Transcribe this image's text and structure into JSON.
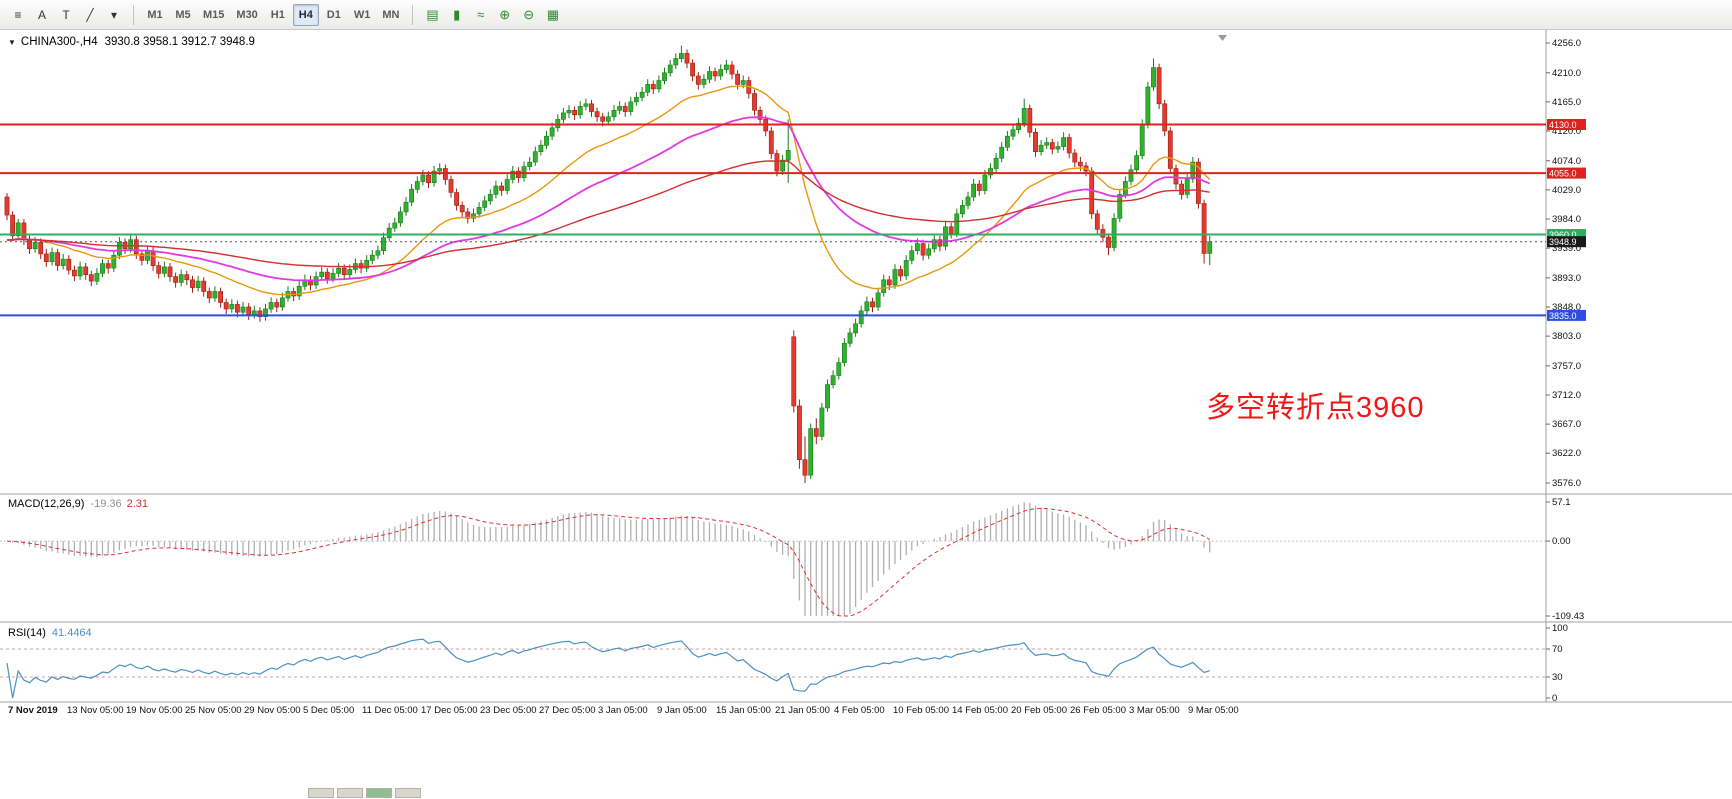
{
  "toolbar": {
    "left_tools": [
      {
        "name": "chart-menu-icon",
        "glyph": "≡"
      },
      {
        "name": "cursor-tool-icon",
        "glyph": "A"
      },
      {
        "name": "text-tool-icon",
        "glyph": "T"
      },
      {
        "name": "trendline-tool-icon",
        "glyph": "╱"
      },
      {
        "name": "drawing-dropdown-icon",
        "glyph": "▾"
      }
    ],
    "timeframes": {
      "items": [
        "M1",
        "M5",
        "M15",
        "M30",
        "H1",
        "H4",
        "D1",
        "W1",
        "MN"
      ],
      "active": "H4"
    },
    "chart_tools": [
      {
        "name": "bar-chart-icon",
        "glyph": "▤"
      },
      {
        "name": "candlestick-chart-icon",
        "glyph": "▮"
      },
      {
        "name": "line-chart-icon",
        "glyph": "≈"
      },
      {
        "name": "zoom-in-icon",
        "glyph": "⊕"
      },
      {
        "name": "zoom-out-icon",
        "glyph": "⊖"
      },
      {
        "name": "grid-icon",
        "glyph": "▦"
      }
    ]
  },
  "chart": {
    "title": {
      "dropdown_glyph": "▼",
      "symbol": "CHINA300-,H4",
      "ohlc": "3930.8 3958.1 3912.7 3948.9"
    },
    "annotation": {
      "text": "多空转折点3960",
      "color": "#f21616"
    }
  },
  "bottom_bar": {
    "tabs": [
      "#d8d5cb",
      "#d8d5cb",
      "#8fbf8f",
      "#d8d5cb"
    ]
  },
  "chart_data": {
    "type": "candlestick",
    "symbol": "CHINA300-",
    "period": "H4",
    "current_bar": {
      "open": 3930.8,
      "high": 3958.1,
      "low": 3912.7,
      "close": 3948.9
    },
    "colors": {
      "up": "#2eb22e",
      "up_border": "#1b7a1b",
      "down": "#e23b2e",
      "down_border": "#9c1f16",
      "background": "#ffffff",
      "axis_text": "#111111",
      "separator": "#a0a0a0"
    },
    "y_axis": {
      "min": 3576.0,
      "max": 4256.0,
      "ticks": [
        4256.0,
        4210.0,
        4165.0,
        4120.0,
        4074.0,
        4029.0,
        3984.0,
        3939.0,
        3893.0,
        3848.0,
        3803.0,
        3757.0,
        3712.0,
        3667.0,
        3622.0,
        3576.0
      ]
    },
    "horizontal_lines": [
      {
        "price": 4130.0,
        "color": "#e01f1f",
        "width": 2
      },
      {
        "price": 4055.0,
        "color": "#e01f1f",
        "width": 2
      },
      {
        "price": 3960.0,
        "color": "#2fae62",
        "width": 2
      },
      {
        "price": 3835.0,
        "color": "#2c4fe0",
        "width": 2
      }
    ],
    "current_price": {
      "value": 3948.9,
      "box_color": "#1a1a1a"
    },
    "moving_averages": [
      {
        "name": "fast-orange",
        "period": 24,
        "color": "#e8980f",
        "width": 1.4
      },
      {
        "name": "mid-magenta",
        "period": 52,
        "color": "#e23ae2",
        "width": 1.8
      },
      {
        "name": "slow-red",
        "period": 110,
        "color": "#d22f2f",
        "width": 1.4
      }
    ],
    "indicators": {
      "macd": {
        "label": "MACD(12,26,9)",
        "fast": 12,
        "slow": 26,
        "signal": 9,
        "value_main": -19.36,
        "value_signal": 2.31,
        "axis_values": [
          57.1,
          0,
          -109.43
        ],
        "axis_labels": [
          "57.1",
          "0.00",
          "-109.43"
        ],
        "histogram_color": "#b0b0b0",
        "signal_color": "#e03030"
      },
      "rsi": {
        "label": "RSI(14)",
        "period": 14,
        "value": 41.4464,
        "levels": [
          70,
          30
        ],
        "axis_values": [
          100,
          70,
          30,
          0
        ],
        "axis_labels": [
          "100",
          "70",
          "30",
          "0"
        ],
        "line_color": "#4a90c4",
        "level_color": "#c9a0a0"
      }
    },
    "x_axis": {
      "labels": [
        "7 Nov 2019",
        "13 Nov 05:00",
        "19 Nov 05:00",
        "25 Nov 05:00",
        "29 Nov 05:00",
        "5 Dec 05:00",
        "11 Dec 05:00",
        "17 Dec 05:00",
        "23 Dec 05:00",
        "27 Dec 05:00",
        "3 Jan 05:00",
        "9 Jan 05:00",
        "15 Jan 05:00",
        "21 Jan 05:00",
        "4 Feb 05:00",
        "10 Feb 05:00",
        "14 Feb 05:00",
        "20 Feb 05:00",
        "26 Feb 05:00",
        "3 Mar 05:00",
        "9 Mar 05:00"
      ]
    },
    "bars": [
      [
        4018,
        4024,
        3982,
        3990
      ],
      [
        3990,
        3996,
        3950,
        3958
      ],
      [
        3958,
        3984,
        3952,
        3978
      ],
      [
        3978,
        3984,
        3944,
        3952
      ],
      [
        3952,
        3958,
        3930,
        3938
      ],
      [
        3938,
        3956,
        3932,
        3948
      ],
      [
        3948,
        3954,
        3922,
        3930
      ],
      [
        3930,
        3938,
        3910,
        3918
      ],
      [
        3918,
        3940,
        3912,
        3932
      ],
      [
        3932,
        3938,
        3904,
        3912
      ],
      [
        3912,
        3930,
        3906,
        3922
      ],
      [
        3922,
        3928,
        3898,
        3905
      ],
      [
        3905,
        3912,
        3888,
        3896
      ],
      [
        3896,
        3918,
        3890,
        3910
      ],
      [
        3910,
        3916,
        3890,
        3898
      ],
      [
        3898,
        3904,
        3880,
        3888
      ],
      [
        3888,
        3908,
        3882,
        3900
      ],
      [
        3900,
        3922,
        3894,
        3915
      ],
      [
        3915,
        3921,
        3900,
        3908
      ],
      [
        3908,
        3935,
        3902,
        3928
      ],
      [
        3928,
        3956,
        3922,
        3948
      ],
      [
        3948,
        3954,
        3930,
        3938
      ],
      [
        3938,
        3960,
        3932,
        3952
      ],
      [
        3952,
        3958,
        3922,
        3930
      ],
      [
        3930,
        3936,
        3912,
        3920
      ],
      [
        3920,
        3942,
        3914,
        3935
      ],
      [
        3935,
        3941,
        3904,
        3912
      ],
      [
        3912,
        3918,
        3892,
        3900
      ],
      [
        3900,
        3918,
        3894,
        3910
      ],
      [
        3910,
        3916,
        3887,
        3895
      ],
      [
        3895,
        3901,
        3878,
        3886
      ],
      [
        3886,
        3906,
        3880,
        3898
      ],
      [
        3898,
        3904,
        3882,
        3890
      ],
      [
        3890,
        3896,
        3870,
        3878
      ],
      [
        3878,
        3896,
        3872,
        3888
      ],
      [
        3888,
        3894,
        3864,
        3872
      ],
      [
        3872,
        3878,
        3854,
        3862
      ],
      [
        3862,
        3880,
        3856,
        3872
      ],
      [
        3872,
        3878,
        3847,
        3855
      ],
      [
        3855,
        3861,
        3837,
        3845
      ],
      [
        3845,
        3860,
        3839,
        3852
      ],
      [
        3852,
        3858,
        3832,
        3840
      ],
      [
        3840,
        3856,
        3834,
        3848
      ],
      [
        3848,
        3854,
        3828,
        3836
      ],
      [
        3836,
        3850,
        3830,
        3842
      ],
      [
        3842,
        3848,
        3825,
        3833
      ],
      [
        3833,
        3853,
        3827,
        3845
      ],
      [
        3845,
        3863,
        3839,
        3855
      ],
      [
        3855,
        3861,
        3840,
        3848
      ],
      [
        3848,
        3870,
        3842,
        3862
      ],
      [
        3862,
        3880,
        3856,
        3872
      ],
      [
        3872,
        3878,
        3857,
        3865
      ],
      [
        3865,
        3888,
        3859,
        3880
      ],
      [
        3880,
        3898,
        3874,
        3890
      ],
      [
        3890,
        3896,
        3874,
        3882
      ],
      [
        3882,
        3903,
        3876,
        3895
      ],
      [
        3895,
        3910,
        3889,
        3902
      ],
      [
        3902,
        3908,
        3884,
        3892
      ],
      [
        3892,
        3908,
        3886,
        3900
      ],
      [
        3900,
        3916,
        3894,
        3908
      ],
      [
        3908,
        3914,
        3890,
        3898
      ],
      [
        3898,
        3914,
        3892,
        3906
      ],
      [
        3906,
        3923,
        3900,
        3915
      ],
      [
        3915,
        3921,
        3900,
        3908
      ],
      [
        3908,
        3928,
        3902,
        3920
      ],
      [
        3920,
        3936,
        3914,
        3928
      ],
      [
        3928,
        3943,
        3922,
        3935
      ],
      [
        3935,
        3963,
        3929,
        3955
      ],
      [
        3955,
        3978,
        3949,
        3970
      ],
      [
        3970,
        3986,
        3964,
        3978
      ],
      [
        3978,
        4003,
        3972,
        3995
      ],
      [
        3995,
        4018,
        3989,
        4010
      ],
      [
        4010,
        4038,
        4004,
        4030
      ],
      [
        4030,
        4050,
        4024,
        4042
      ],
      [
        4042,
        4060,
        4036,
        4052
      ],
      [
        4052,
        4058,
        4032,
        4040
      ],
      [
        4040,
        4066,
        4034,
        4058
      ],
      [
        4058,
        4070,
        4052,
        4062
      ],
      [
        4062,
        4068,
        4037,
        4045
      ],
      [
        4045,
        4051,
        4017,
        4025
      ],
      [
        4025,
        4031,
        3997,
        4005
      ],
      [
        4005,
        4011,
        3987,
        3995
      ],
      [
        3995,
        4001,
        3977,
        3985
      ],
      [
        3985,
        4000,
        3979,
        3992
      ],
      [
        3992,
        4010,
        3986,
        4002
      ],
      [
        4002,
        4020,
        3996,
        4012
      ],
      [
        4012,
        4030,
        4006,
        4022
      ],
      [
        4022,
        4043,
        4016,
        4035
      ],
      [
        4035,
        4041,
        4020,
        4028
      ],
      [
        4028,
        4053,
        4022,
        4045
      ],
      [
        4045,
        4066,
        4039,
        4058
      ],
      [
        4058,
        4064,
        4040,
        4048
      ],
      [
        4048,
        4073,
        4042,
        4065
      ],
      [
        4065,
        4080,
        4059,
        4072
      ],
      [
        4072,
        4096,
        4066,
        4088
      ],
      [
        4088,
        4106,
        4082,
        4098
      ],
      [
        4098,
        4120,
        4092,
        4112
      ],
      [
        4112,
        4133,
        4106,
        4125
      ],
      [
        4125,
        4146,
        4119,
        4138
      ],
      [
        4138,
        4156,
        4132,
        4148
      ],
      [
        4148,
        4160,
        4140,
        4152
      ],
      [
        4152,
        4158,
        4137,
        4145
      ],
      [
        4145,
        4166,
        4139,
        4158
      ],
      [
        4158,
        4170,
        4152,
        4162
      ],
      [
        4162,
        4168,
        4142,
        4150
      ],
      [
        4150,
        4156,
        4134,
        4142
      ],
      [
        4142,
        4148,
        4127,
        4135
      ],
      [
        4135,
        4150,
        4129,
        4142
      ],
      [
        4142,
        4160,
        4136,
        4152
      ],
      [
        4152,
        4166,
        4146,
        4158
      ],
      [
        4158,
        4164,
        4142,
        4150
      ],
      [
        4150,
        4173,
        4144,
        4165
      ],
      [
        4165,
        4180,
        4159,
        4172
      ],
      [
        4172,
        4188,
        4166,
        4180
      ],
      [
        4180,
        4200,
        4174,
        4192
      ],
      [
        4192,
        4198,
        4177,
        4185
      ],
      [
        4185,
        4206,
        4179,
        4198
      ],
      [
        4198,
        4218,
        4192,
        4210
      ],
      [
        4210,
        4230,
        4204,
        4222
      ],
      [
        4222,
        4240,
        4216,
        4232
      ],
      [
        4232,
        4252,
        4226,
        4240
      ],
      [
        4240,
        4246,
        4217,
        4225
      ],
      [
        4225,
        4231,
        4197,
        4205
      ],
      [
        4205,
        4211,
        4184,
        4192
      ],
      [
        4192,
        4208,
        4186,
        4200
      ],
      [
        4200,
        4220,
        4194,
        4212
      ],
      [
        4212,
        4218,
        4197,
        4205
      ],
      [
        4205,
        4223,
        4199,
        4215
      ],
      [
        4215,
        4230,
        4209,
        4222
      ],
      [
        4222,
        4228,
        4200,
        4208
      ],
      [
        4208,
        4214,
        4184,
        4192
      ],
      [
        4192,
        4206,
        4186,
        4198
      ],
      [
        4198,
        4204,
        4170,
        4178
      ],
      [
        4178,
        4184,
        4144,
        4152
      ],
      [
        4152,
        4158,
        4130,
        4138
      ],
      [
        4138,
        4144,
        4112,
        4120
      ],
      [
        4120,
        4126,
        4077,
        4085
      ],
      [
        4085,
        4091,
        4050,
        4058
      ],
      [
        4058,
        4083,
        4052,
        4075
      ],
      [
        4075,
        4138,
        4040,
        4090
      ],
      [
        3802,
        3812,
        3685,
        3695
      ],
      [
        3695,
        3705,
        3598,
        3612
      ],
      [
        3612,
        3648,
        3576,
        3588
      ],
      [
        3588,
        3668,
        3582,
        3660
      ],
      [
        3660,
        3676,
        3636,
        3648
      ],
      [
        3648,
        3700,
        3642,
        3692
      ],
      [
        3692,
        3736,
        3686,
        3728
      ],
      [
        3728,
        3750,
        3722,
        3742
      ],
      [
        3742,
        3770,
        3736,
        3762
      ],
      [
        3762,
        3800,
        3756,
        3792
      ],
      [
        3792,
        3816,
        3786,
        3808
      ],
      [
        3808,
        3830,
        3802,
        3822
      ],
      [
        3822,
        3850,
        3816,
        3842
      ],
      [
        3842,
        3864,
        3836,
        3856
      ],
      [
        3856,
        3862,
        3840,
        3848
      ],
      [
        3848,
        3878,
        3842,
        3870
      ],
      [
        3870,
        3898,
        3864,
        3890
      ],
      [
        3890,
        3896,
        3874,
        3882
      ],
      [
        3882,
        3914,
        3876,
        3906
      ],
      [
        3906,
        3912,
        3888,
        3896
      ],
      [
        3896,
        3928,
        3890,
        3920
      ],
      [
        3920,
        3943,
        3914,
        3935
      ],
      [
        3935,
        3954,
        3929,
        3946
      ],
      [
        3946,
        3952,
        3920,
        3928
      ],
      [
        3928,
        3946,
        3922,
        3938
      ],
      [
        3938,
        3960,
        3932,
        3952
      ],
      [
        3952,
        3958,
        3934,
        3942
      ],
      [
        3942,
        3980,
        3936,
        3972
      ],
      [
        3972,
        3978,
        3954,
        3962
      ],
      [
        3962,
        4000,
        3956,
        3992
      ],
      [
        3992,
        4013,
        3986,
        4005
      ],
      [
        4005,
        4026,
        3999,
        4018
      ],
      [
        4018,
        4046,
        4012,
        4038
      ],
      [
        4038,
        4044,
        4020,
        4028
      ],
      [
        4028,
        4060,
        4022,
        4052
      ],
      [
        4052,
        4070,
        4046,
        4062
      ],
      [
        4062,
        4086,
        4056,
        4078
      ],
      [
        4078,
        4103,
        4072,
        4095
      ],
      [
        4095,
        4120,
        4089,
        4112
      ],
      [
        4112,
        4130,
        4106,
        4122
      ],
      [
        4122,
        4140,
        4116,
        4132
      ],
      [
        4132,
        4170,
        4126,
        4155
      ],
      [
        4155,
        4161,
        4110,
        4118
      ],
      [
        4118,
        4124,
        4080,
        4088
      ],
      [
        4088,
        4106,
        4082,
        4098
      ],
      [
        4098,
        4110,
        4092,
        4102
      ],
      [
        4102,
        4108,
        4084,
        4092
      ],
      [
        4092,
        4104,
        4086,
        4096
      ],
      [
        4096,
        4118,
        4090,
        4110
      ],
      [
        4110,
        4116,
        4078,
        4086
      ],
      [
        4086,
        4092,
        4064,
        4072
      ],
      [
        4072,
        4080,
        4058,
        4066
      ],
      [
        4066,
        4072,
        4050,
        4058
      ],
      [
        4058,
        4064,
        3984,
        3992
      ],
      [
        3992,
        3998,
        3960,
        3968
      ],
      [
        3968,
        3976,
        3948,
        3956
      ],
      [
        3956,
        3962,
        3928,
        3940
      ],
      [
        3940,
        3993,
        3934,
        3985
      ],
      [
        3985,
        4030,
        3979,
        4022
      ],
      [
        4022,
        4050,
        4016,
        4042
      ],
      [
        4042,
        4068,
        4036,
        4060
      ],
      [
        4060,
        4090,
        4054,
        4082
      ],
      [
        4082,
        4138,
        4076,
        4130
      ],
      [
        4130,
        4196,
        4124,
        4188
      ],
      [
        4188,
        4232,
        4182,
        4218
      ],
      [
        4218,
        4224,
        4154,
        4162
      ],
      [
        4162,
        4168,
        4112,
        4120
      ],
      [
        4120,
        4126,
        4054,
        4062
      ],
      [
        4062,
        4068,
        4030,
        4038
      ],
      [
        4038,
        4044,
        4014,
        4022
      ],
      [
        4022,
        4054,
        4016,
        4046
      ],
      [
        4046,
        4080,
        4040,
        4072
      ],
      [
        4072,
        4078,
        4000,
        4008
      ],
      [
        4008,
        4014,
        3915,
        3930.8
      ],
      [
        3930.8,
        3958.1,
        3912.7,
        3948.9
      ]
    ]
  }
}
